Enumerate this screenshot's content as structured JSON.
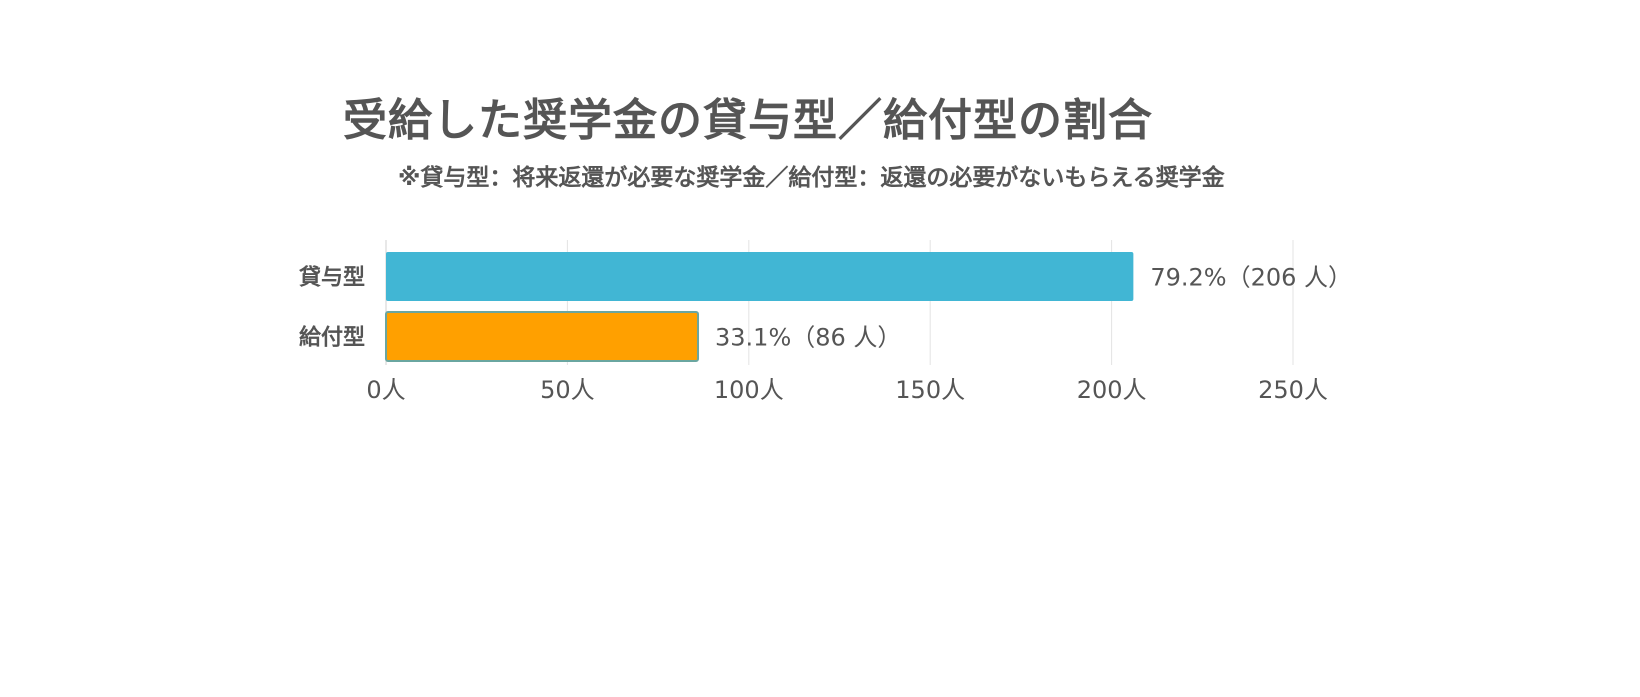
{
  "chart_data": {
    "type": "bar",
    "orientation": "horizontal",
    "title": "受給した奨学金の貸与型／給付型の割合",
    "subtitle": "※貸与型：将来返還が必要な奨学金／給付型：返還の必要がないもらえる奨学金",
    "categories": [
      "貸与型",
      "給付型"
    ],
    "values": [
      206,
      86
    ],
    "data_labels": [
      "79.2%（206 人）",
      "33.1%（86 人）"
    ],
    "colors": [
      "#41b6d4",
      "#ffa000"
    ],
    "xlim": [
      0,
      250
    ],
    "x_ticks": [
      0,
      50,
      100,
      150,
      200,
      250
    ],
    "x_tick_labels": [
      "0人",
      "50人",
      "100人",
      "150人",
      "200人",
      "250人"
    ],
    "grid": "vertical",
    "legend": "none"
  }
}
